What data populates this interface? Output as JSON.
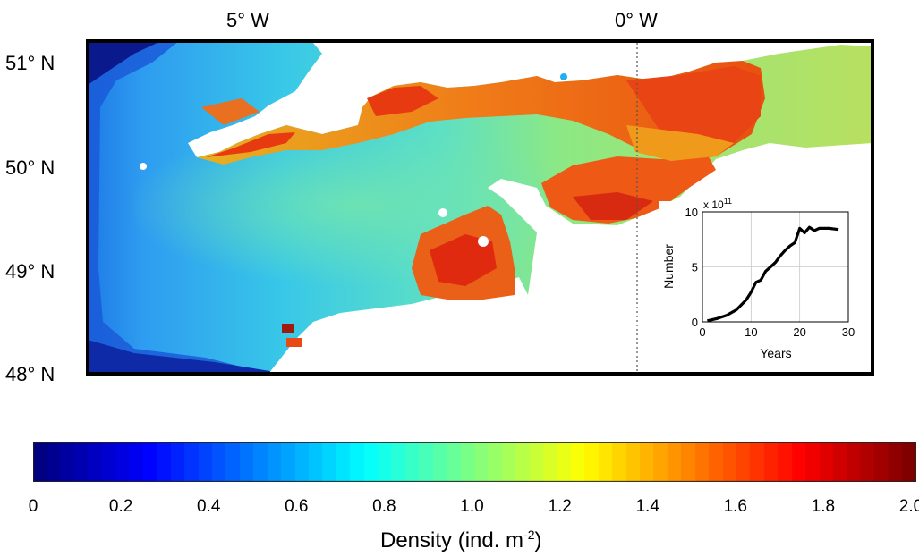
{
  "map": {
    "lon_labels": [
      "5° W",
      "0° W"
    ],
    "lat_labels": [
      "51° N",
      "50° N",
      "49° N",
      "48° N"
    ]
  },
  "inset": {
    "exponent_base": "x 10",
    "exponent_power": "11",
    "ylabel": "Number",
    "xlabel": "Years",
    "xticks": [
      "0",
      "10",
      "20",
      "30"
    ],
    "yticks": [
      "0",
      "5",
      "10"
    ]
  },
  "colorbar": {
    "ticks": [
      "0",
      "0.2",
      "0.4",
      "0.6",
      "0.8",
      "1.0",
      "1.2",
      "1.4",
      "1.6",
      "1.8",
      "2.0"
    ],
    "title_main": "Density (ind. m",
    "title_sup": "-2",
    "title_end": ")"
  },
  "chart_data": {
    "type": "line",
    "title": "",
    "xlabel": "Years",
    "ylabel": "Number",
    "xlim": [
      0,
      30
    ],
    "ylim": [
      0,
      10
    ],
    "y_scale_factor": "x 10^11",
    "grid": true,
    "x": [
      1,
      3,
      5,
      7,
      9,
      10,
      11,
      12,
      13,
      14,
      15,
      16,
      17,
      18,
      19,
      20,
      21,
      22,
      23,
      24,
      25,
      26,
      28
    ],
    "values": [
      0.1,
      0.3,
      0.6,
      1.1,
      2.0,
      2.7,
      3.6,
      3.8,
      4.6,
      5.0,
      5.4,
      6.0,
      6.5,
      6.9,
      7.2,
      8.5,
      8.1,
      8.6,
      8.3,
      8.5,
      8.5,
      8.5,
      8.4
    ]
  },
  "colors": {
    "ocean_deep": "#0a1a8c",
    "ocean_mid": "#28a8f0",
    "ocean_center": "#60e0b0",
    "coast_high": "#e83010",
    "land": "#ffffff"
  }
}
